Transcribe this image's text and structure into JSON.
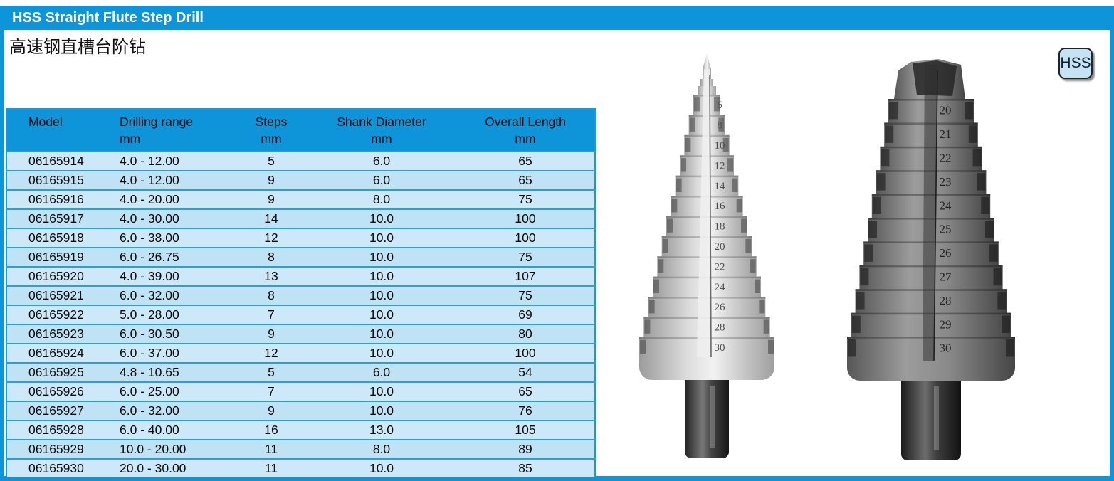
{
  "page": {
    "title": "HSS Straight Flute Step Drill",
    "subtitle_zh": "高速钢直槽台阶钻",
    "badge": "HSS"
  },
  "colors": {
    "header_blue": "#0e94d8",
    "row_blue": "#cde9f9",
    "row_blue_alt": "#bfe2f4",
    "row_divider": "#2aa0d7",
    "badge_bg": "#c6e3f4"
  },
  "table": {
    "columns": [
      {
        "label": "Model",
        "unit": ""
      },
      {
        "label": "Drilling range",
        "unit": "mm"
      },
      {
        "label": "Steps",
        "unit": "mm"
      },
      {
        "label": "Shank Diameter",
        "unit": "mm"
      },
      {
        "label": "Overall Length",
        "unit": "mm"
      }
    ],
    "rows": [
      [
        "06165914",
        "4.0 - 12.00",
        "5",
        "6.0",
        "65"
      ],
      [
        "06165915",
        "4.0 - 12.00",
        "9",
        "6.0",
        "65"
      ],
      [
        "06165916",
        "4.0 - 20.00",
        "9",
        "8.0",
        "75"
      ],
      [
        "06165917",
        "4.0 - 30.00",
        "14",
        "10.0",
        "100"
      ],
      [
        "06165918",
        "6.0 - 38.00",
        "12",
        "10.0",
        "100"
      ],
      [
        "06165919",
        "6.0 - 26.75",
        "8",
        "10.0",
        "75"
      ],
      [
        "06165920",
        "4.0 - 39.00",
        "13",
        "10.0",
        "107"
      ],
      [
        "06165921",
        "6.0 - 32.00",
        "8",
        "10.0",
        "75"
      ],
      [
        "06165922",
        "5.0 - 28.00",
        "7",
        "10.0",
        "69"
      ],
      [
        "06165923",
        "6.0 - 30.50",
        "9",
        "10.0",
        "80"
      ],
      [
        "06165924",
        "6.0 - 37.00",
        "12",
        "10.0",
        "100"
      ],
      [
        "06165925",
        "4.8 - 10.65",
        "5",
        "6.0",
        "54"
      ],
      [
        "06165926",
        "6.0 - 25.00",
        "7",
        "10.0",
        "65"
      ],
      [
        "06165927",
        "6.0 - 32.00",
        "9",
        "10.0",
        "76"
      ],
      [
        "06165928",
        "6.0 - 40.00",
        "16",
        "13.0",
        "105"
      ],
      [
        "06165929",
        "10.0 - 20.00",
        "11",
        "8.0",
        "89"
      ],
      [
        "06165930",
        "20.0 - 30.00",
        "11",
        "10.0",
        "85"
      ]
    ]
  },
  "images": {
    "drill_small": {
      "description": "step-drill-photo-small",
      "step_labels": [
        "6",
        "8",
        "10",
        "12",
        "14",
        "16",
        "18",
        "20",
        "22",
        "24",
        "26",
        "28",
        "30"
      ]
    },
    "drill_large": {
      "description": "step-drill-photo-large",
      "step_labels": [
        "20",
        "21",
        "22",
        "23",
        "24",
        "25",
        "26",
        "27",
        "28",
        "29",
        "30"
      ]
    }
  }
}
